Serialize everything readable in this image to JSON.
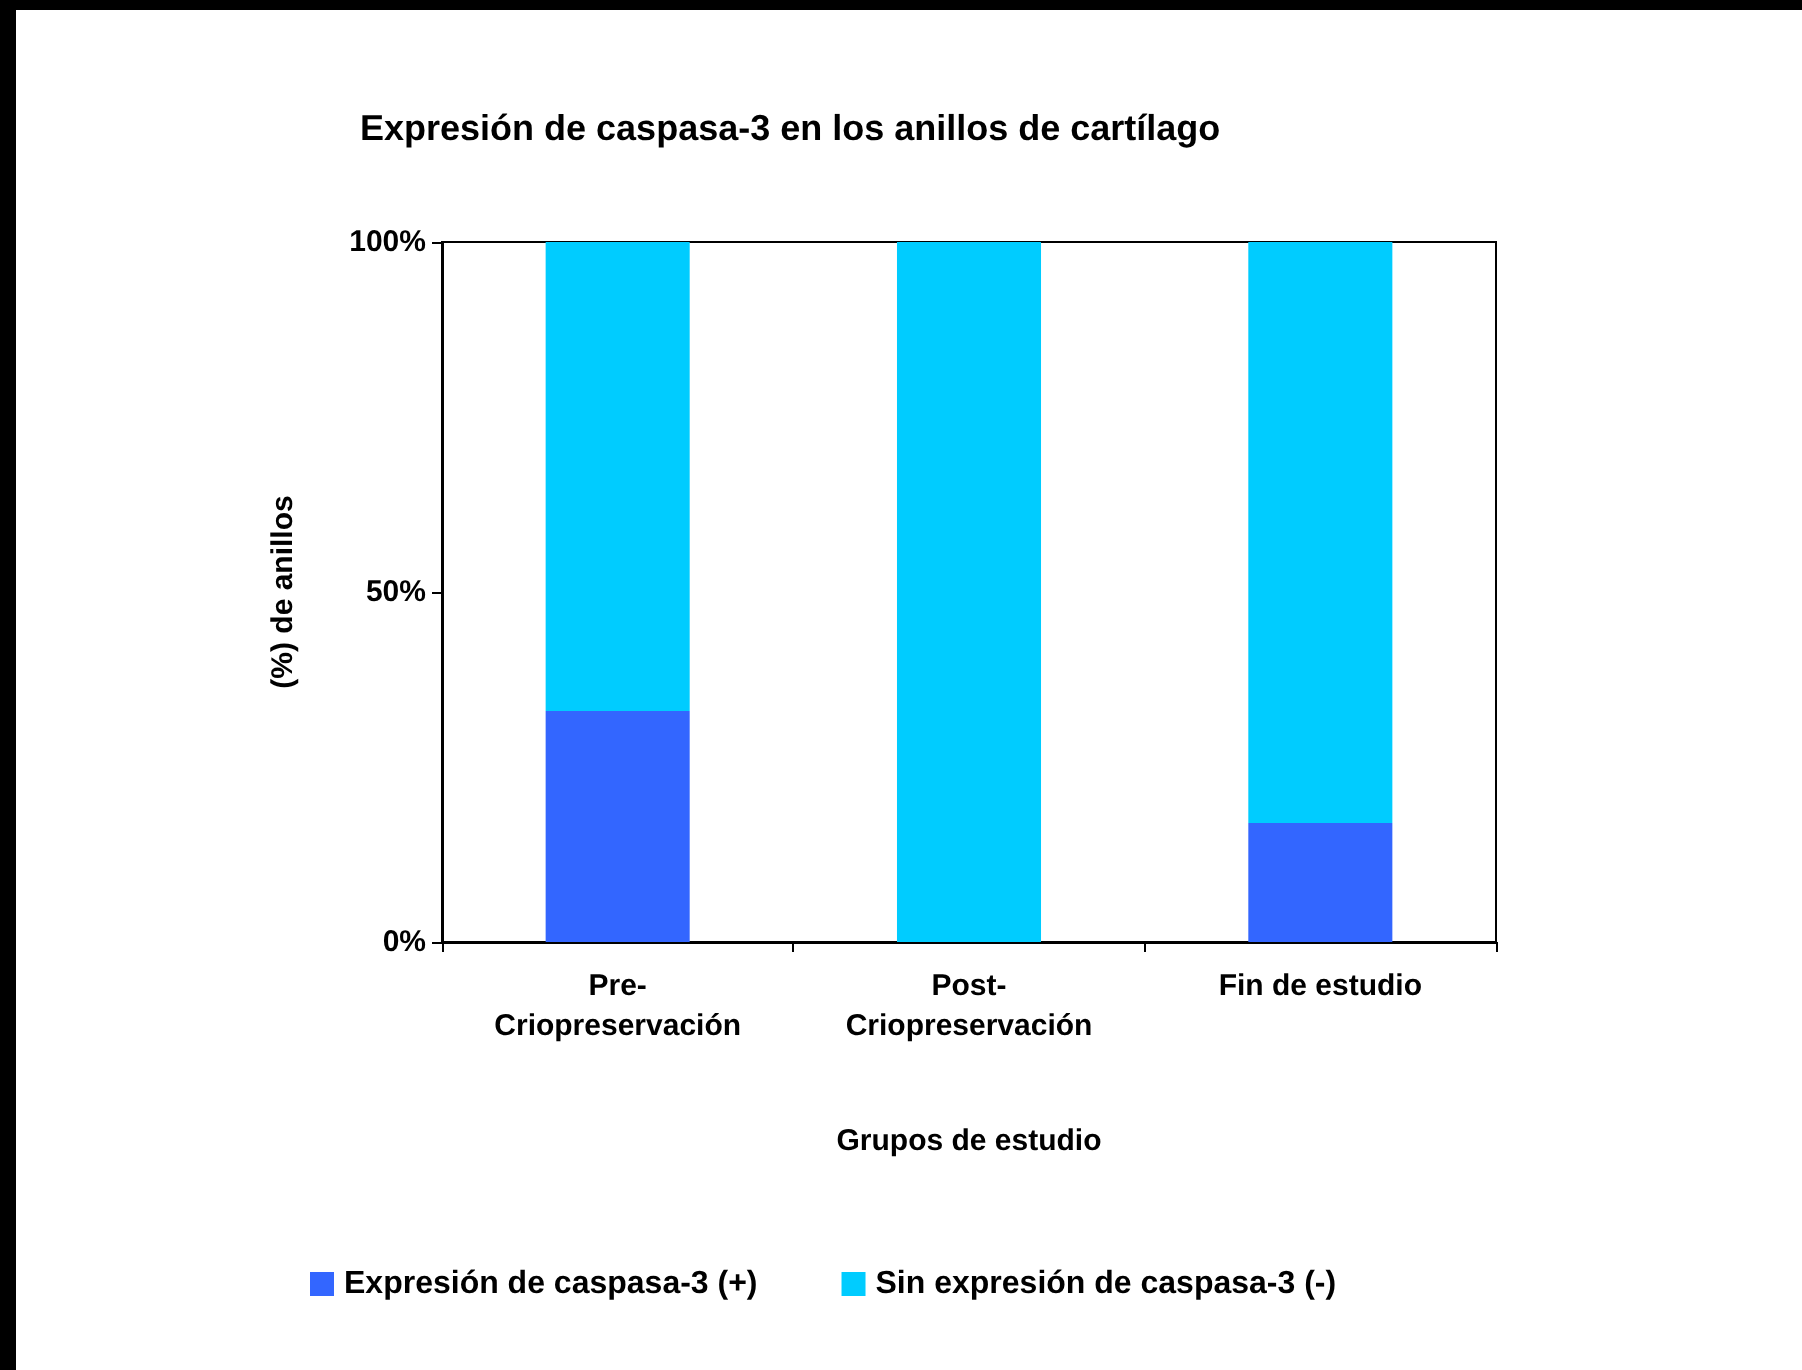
{
  "chart_data": {
    "type": "bar",
    "title": "Expresión de caspasa-3 en los anillos de cartílago",
    "xlabel": "Grupos de estudio",
    "ylabel": "(%) de anillos",
    "categories": [
      "Pre-\nCriopreservación",
      "Post-\nCriopreservación",
      "Fin de estudio"
    ],
    "series": [
      {
        "name": "Expresión de caspasa-3 (+)",
        "color": "#3366ff",
        "values": [
          33,
          0,
          17
        ]
      },
      {
        "name": "Sin expresión de caspasa-3 (-)",
        "color": "#00ccff",
        "values": [
          67,
          100,
          83
        ]
      }
    ],
    "stacked": true,
    "ylim": [
      0,
      100
    ],
    "yticks": [
      {
        "value": 0,
        "label": "0%"
      },
      {
        "value": 50,
        "label": "50%"
      },
      {
        "value": 100,
        "label": "100%"
      }
    ],
    "grid": false,
    "legend": "bottom"
  }
}
